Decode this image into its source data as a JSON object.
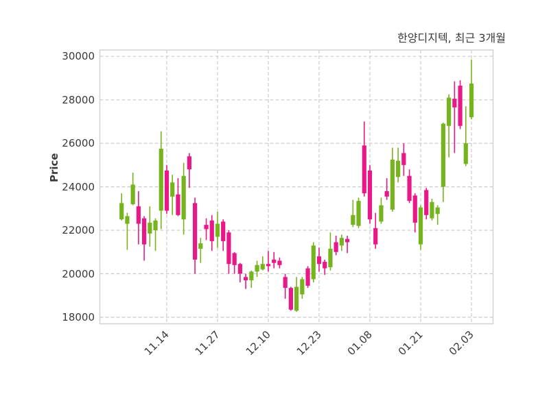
{
  "title": "한양디지텍, 최근 3개월",
  "y_axis": {
    "label": "Price",
    "tick_values": [
      18000,
      20000,
      22000,
      24000,
      26000,
      28000,
      30000
    ],
    "range": [
      17700,
      30290
    ]
  },
  "x_axis": {
    "tick_labels": [
      "11.14",
      "11.27",
      "12.10",
      "12.23",
      "01.08",
      "01.21",
      "02.03"
    ],
    "tick_indices": [
      8,
      17,
      26,
      35,
      44,
      53,
      62
    ]
  },
  "chart_data": {
    "type": "candlestick",
    "series_name": "한양디지텍",
    "period_label": "최근 3개월",
    "up_color": "#76b41e",
    "down_color": "#e91888",
    "grid_color": "#cbcbcb",
    "border_color": "#d2d2d2",
    "text_color": "#3a3a3a",
    "ylim": [
      17700,
      30290
    ],
    "candles_ohlc": [
      [
        22500,
        23700,
        22450,
        23250
      ],
      [
        22300,
        22800,
        21100,
        22650
      ],
      [
        23200,
        24650,
        23150,
        24100
      ],
      [
        23100,
        23800,
        21350,
        22300
      ],
      [
        22550,
        22650,
        20600,
        21350
      ],
      [
        21850,
        23100,
        21250,
        22350
      ],
      [
        22000,
        22550,
        21050,
        22450
      ],
      [
        22900,
        26550,
        22050,
        25750
      ],
      [
        24750,
        25000,
        22750,
        22900
      ],
      [
        23550,
        24550,
        22700,
        24200
      ],
      [
        23650,
        24400,
        22650,
        22700
      ],
      [
        22500,
        25100,
        21800,
        24500
      ],
      [
        25400,
        25550,
        23950,
        24800
      ],
      [
        23250,
        23500,
        20000,
        20650
      ],
      [
        21150,
        21650,
        20500,
        21400
      ],
      [
        22250,
        22550,
        21550,
        22050
      ],
      [
        22450,
        22700,
        21050,
        21500
      ],
      [
        21700,
        22850,
        21200,
        22300
      ],
      [
        22400,
        22500,
        21050,
        21500
      ],
      [
        21900,
        22000,
        20000,
        20450
      ],
      [
        20950,
        21000,
        20000,
        20400
      ],
      [
        20450,
        20500,
        19600,
        20000
      ],
      [
        19850,
        20000,
        19300,
        19700
      ],
      [
        19700,
        20150,
        19350,
        20100
      ],
      [
        20100,
        20600,
        19850,
        20400
      ],
      [
        20200,
        20800,
        20150,
        20450
      ],
      [
        20450,
        21050,
        20100,
        20350
      ],
      [
        20650,
        21000,
        20250,
        20500
      ],
      [
        20600,
        20750,
        20250,
        20400
      ],
      [
        19850,
        20000,
        18850,
        19350
      ],
      [
        19350,
        19400,
        18300,
        18350
      ],
      [
        18300,
        19850,
        18250,
        19400
      ],
      [
        19050,
        19850,
        18850,
        19750
      ],
      [
        20250,
        20350,
        19350,
        19450
      ],
      [
        19750,
        21450,
        19600,
        21300
      ],
      [
        20800,
        21200,
        20100,
        20450
      ],
      [
        20550,
        20650,
        19950,
        20250
      ],
      [
        20300,
        21900,
        20150,
        21150
      ],
      [
        21450,
        21750,
        20850,
        21000
      ],
      [
        21300,
        21800,
        21050,
        21650
      ],
      [
        21600,
        21750,
        20950,
        21450
      ],
      [
        22250,
        23400,
        22150,
        22700
      ],
      [
        22200,
        23500,
        22100,
        23350
      ],
      [
        25900,
        27000,
        23550,
        23700
      ],
      [
        24750,
        25000,
        22300,
        22500
      ],
      [
        22100,
        22800,
        21150,
        21350
      ],
      [
        22400,
        23500,
        22300,
        23150
      ],
      [
        23800,
        24400,
        23400,
        23550
      ],
      [
        22950,
        25800,
        22850,
        25250
      ],
      [
        24450,
        25800,
        24200,
        25200
      ],
      [
        25550,
        26000,
        24500,
        25000
      ],
      [
        24500,
        24800,
        23250,
        23350
      ],
      [
        23600,
        23700,
        21900,
        22350
      ],
      [
        21350,
        23150,
        21100,
        23050
      ],
      [
        23850,
        23950,
        22500,
        22700
      ],
      [
        22550,
        23450,
        22450,
        23300
      ],
      [
        22750,
        23150,
        22250,
        23050
      ],
      [
        24000,
        26950,
        23300,
        26900
      ],
      [
        26800,
        28250,
        25350,
        28100
      ],
      [
        28050,
        28850,
        25550,
        27650
      ],
      [
        28650,
        28900,
        26650,
        26800
      ],
      [
        25050,
        27700,
        24950,
        26000
      ],
      [
        27200,
        29850,
        27100,
        28750
      ]
    ]
  }
}
